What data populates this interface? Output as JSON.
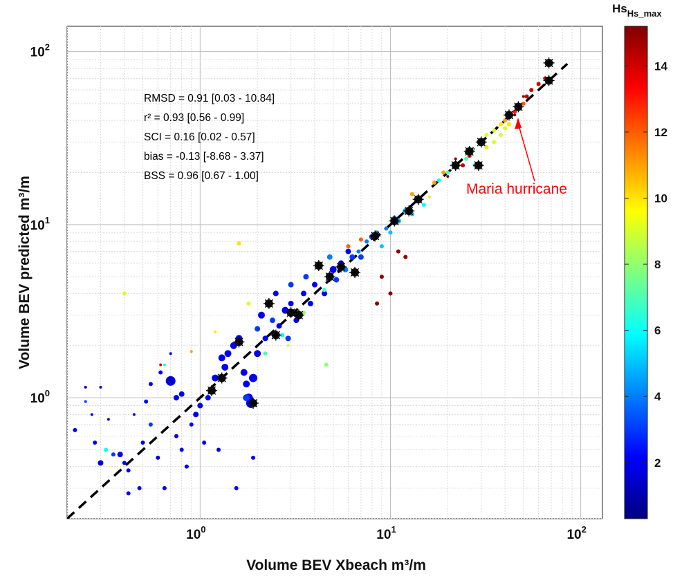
{
  "chart_data": {
    "type": "scatter",
    "xscale": "log",
    "yscale": "log",
    "xlim": [
      0.2,
      130
    ],
    "ylim": [
      0.2,
      140
    ],
    "xlabel": "Volume BEV Xbeach m³/m",
    "ylabel": "Volume BEV predicted m³/m",
    "x_tick_labels": [
      {
        "base": "10",
        "exp": "0",
        "value": 1
      },
      {
        "base": "10",
        "exp": "1",
        "value": 10
      },
      {
        "base": "10",
        "exp": "2",
        "value": 100
      }
    ],
    "y_tick_labels": [
      {
        "base": "10",
        "exp": "0",
        "value": 1
      },
      {
        "base": "10",
        "exp": "1",
        "value": 10
      },
      {
        "base": "10",
        "exp": "2",
        "value": 100
      }
    ],
    "grid": true,
    "colorbar": {
      "label": "Hs_max",
      "colormap": "jet",
      "range": [
        0.3,
        15.2
      ],
      "ticks": [
        "2",
        "4",
        "6",
        "8",
        "10",
        "12",
        "14"
      ],
      "tick_values": [
        2,
        4,
        6,
        8,
        10,
        12,
        14
      ]
    },
    "statistics": [
      "RMSD = 0.91 [0.03 - 10.84]",
      "r² = 0.93 [0.56 - 0.99]",
      "SCI = 0.16 [0.02 - 0.57]",
      "bias = -0.13 [-8.68 - 3.37]",
      "BSS = 0.96 [0.67 - 1.00]"
    ],
    "reference_line": {
      "type": "1:1",
      "style": "dashed",
      "color": "#000000"
    },
    "annotation": {
      "text": "Maria hurricane",
      "color": "#ff0000",
      "points_to": [
        42,
        38
      ]
    },
    "series_points": [
      [
        0.22,
        0.65,
        2,
        3
      ],
      [
        0.25,
        0.95,
        3,
        2
      ],
      [
        0.25,
        1.15,
        1.5,
        2
      ],
      [
        0.27,
        0.8,
        2,
        2
      ],
      [
        0.28,
        0.55,
        2,
        3
      ],
      [
        0.3,
        0.42,
        1.5,
        4
      ],
      [
        0.3,
        1.15,
        2,
        2
      ],
      [
        0.32,
        0.5,
        6,
        3
      ],
      [
        0.33,
        0.75,
        2,
        2
      ],
      [
        0.35,
        0.47,
        3,
        3
      ],
      [
        0.38,
        0.47,
        2,
        4
      ],
      [
        0.4,
        0.42,
        2,
        3
      ],
      [
        0.4,
        4.0,
        9,
        3
      ],
      [
        0.42,
        0.28,
        2,
        3
      ],
      [
        0.42,
        0.38,
        2,
        3
      ],
      [
        0.45,
        0.8,
        2,
        2
      ],
      [
        0.48,
        0.3,
        2,
        3
      ],
      [
        0.5,
        0.55,
        2,
        3
      ],
      [
        0.52,
        0.95,
        2,
        3
      ],
      [
        0.55,
        1.2,
        2,
        3
      ],
      [
        0.55,
        0.7,
        3,
        3
      ],
      [
        0.6,
        0.45,
        1.5,
        3
      ],
      [
        0.62,
        1.4,
        2,
        3
      ],
      [
        0.65,
        0.3,
        2,
        3
      ],
      [
        0.65,
        1.55,
        6,
        2
      ],
      [
        0.7,
        1.8,
        2,
        2
      ],
      [
        0.7,
        1.25,
        1.5,
        7
      ],
      [
        0.75,
        0.6,
        2,
        3
      ],
      [
        0.75,
        1.0,
        2,
        4
      ],
      [
        0.8,
        0.5,
        2,
        3
      ],
      [
        0.8,
        1.05,
        2,
        4
      ],
      [
        0.85,
        0.4,
        2,
        3
      ],
      [
        0.9,
        0.7,
        2,
        3
      ],
      [
        0.95,
        0.8,
        2,
        4
      ],
      [
        1.0,
        0.9,
        2,
        4
      ],
      [
        1.05,
        0.55,
        2,
        3
      ],
      [
        1.1,
        1.0,
        2,
        4
      ],
      [
        1.15,
        1.1,
        2,
        5
      ],
      [
        1.2,
        1.3,
        2,
        5
      ],
      [
        1.25,
        0.5,
        2,
        3
      ],
      [
        1.3,
        1.7,
        2,
        5
      ],
      [
        1.35,
        1.5,
        2,
        5
      ],
      [
        1.4,
        1.8,
        2,
        5
      ],
      [
        1.5,
        2.0,
        2,
        5
      ],
      [
        1.55,
        0.3,
        2,
        3
      ],
      [
        1.6,
        2.2,
        2,
        5
      ],
      [
        1.7,
        1.4,
        2,
        5
      ],
      [
        1.75,
        1.2,
        2,
        5
      ],
      [
        1.8,
        1.0,
        2,
        6
      ],
      [
        1.85,
        0.93,
        2,
        7
      ],
      [
        1.9,
        1.3,
        2,
        6
      ],
      [
        1.9,
        0.45,
        2,
        3
      ],
      [
        2.0,
        1.8,
        2,
        5
      ],
      [
        2.0,
        2.5,
        3,
        4
      ],
      [
        2.1,
        3.0,
        2,
        5
      ],
      [
        2.2,
        2.2,
        2,
        4
      ],
      [
        2.3,
        3.5,
        2,
        5
      ],
      [
        2.4,
        2.8,
        3,
        4
      ],
      [
        2.5,
        4.0,
        2,
        4
      ],
      [
        2.6,
        2.6,
        2,
        4
      ],
      [
        2.7,
        2.3,
        6,
        3
      ],
      [
        2.8,
        3.2,
        2,
        5
      ],
      [
        2.9,
        2.2,
        3,
        4
      ],
      [
        3.0,
        3.5,
        2,
        4
      ],
      [
        3.0,
        4.5,
        3,
        4
      ],
      [
        3.2,
        2.8,
        2,
        4
      ],
      [
        3.3,
        3.0,
        2,
        4
      ],
      [
        3.5,
        4.0,
        2,
        4
      ],
      [
        3.6,
        5.0,
        3,
        4
      ],
      [
        3.8,
        3.5,
        2,
        4
      ],
      [
        4.0,
        4.5,
        2,
        4
      ],
      [
        4.2,
        5.8,
        2,
        5
      ],
      [
        4.5,
        4.0,
        2,
        4
      ],
      [
        4.6,
        1.55,
        8,
        3
      ],
      [
        4.8,
        6.5,
        4,
        4
      ],
      [
        5.0,
        5.5,
        2,
        5
      ],
      [
        5.2,
        4.8,
        3,
        4
      ],
      [
        5.5,
        6.0,
        2,
        4
      ],
      [
        5.8,
        5.5,
        4,
        4
      ],
      [
        6.0,
        7.0,
        2,
        4
      ],
      [
        6.3,
        6.5,
        3,
        4
      ],
      [
        6.5,
        5.3,
        2,
        5
      ],
      [
        6.8,
        7.0,
        4,
        3
      ],
      [
        7.0,
        6.5,
        3,
        4
      ],
      [
        7.5,
        8.0,
        4,
        3
      ],
      [
        8.0,
        8.5,
        3,
        4
      ],
      [
        8.5,
        9.0,
        4,
        3
      ],
      [
        9.0,
        7.5,
        5,
        3
      ],
      [
        9.5,
        9.5,
        4,
        3
      ],
      [
        10.0,
        9.0,
        5,
        3
      ],
      [
        10.5,
        11.0,
        4,
        3
      ],
      [
        11.0,
        10.5,
        5,
        4
      ],
      [
        12.0,
        12.0,
        5,
        4
      ],
      [
        13.0,
        11.5,
        5,
        3
      ],
      [
        14.0,
        14.0,
        5,
        4
      ],
      [
        15.0,
        13.0,
        6,
        3
      ],
      [
        16.0,
        14.5,
        10,
        2
      ],
      [
        18.0,
        18.0,
        6,
        3
      ],
      [
        20.0,
        20.0,
        7,
        3
      ],
      [
        22.0,
        22.5,
        7,
        4
      ],
      [
        24.0,
        22.0,
        14,
        3
      ],
      [
        25.0,
        24.0,
        7,
        3
      ],
      [
        26.0,
        25.0,
        14,
        3
      ],
      [
        27.0,
        27.0,
        7,
        3
      ],
      [
        28.0,
        22.0,
        7,
        4
      ],
      [
        30.0,
        30.0,
        8,
        3
      ],
      [
        32.0,
        33.0,
        9,
        3
      ],
      [
        35.0,
        35.0,
        9,
        3
      ],
      [
        38.0,
        38.0,
        10,
        3
      ],
      [
        40.0,
        40.0,
        11,
        3
      ],
      [
        42.0,
        43.0,
        12,
        3
      ],
      [
        45.0,
        45.0,
        13,
        3
      ],
      [
        48.0,
        48.0,
        14,
        3
      ],
      [
        50.0,
        50.0,
        12,
        3
      ],
      [
        52.0,
        55.0,
        14,
        3
      ],
      [
        55.0,
        60.0,
        14,
        3
      ],
      [
        60.0,
        65.0,
        14,
        3
      ],
      [
        65.0,
        70.0,
        14,
        3
      ],
      [
        68.0,
        85.0,
        15,
        4
      ],
      [
        68.0,
        68.0,
        12,
        3
      ],
      [
        32.0,
        28.0,
        10,
        3
      ],
      [
        35.0,
        30.0,
        9,
        3
      ],
      [
        38.0,
        33.0,
        9,
        3
      ],
      [
        40.0,
        36.0,
        9,
        3
      ],
      [
        42.0,
        38.0,
        10,
        3
      ],
      [
        10.0,
        4.0,
        15,
        3
      ],
      [
        9.0,
        5.0,
        15,
        3
      ],
      [
        11.0,
        7.0,
        15,
        3
      ],
      [
        8.5,
        3.5,
        15,
        3
      ],
      [
        12.0,
        6.5,
        15,
        3
      ],
      [
        20.0,
        19.0,
        15,
        2
      ],
      [
        22.0,
        24.0,
        15,
        2
      ],
      [
        25.0,
        26.0,
        15,
        2
      ],
      [
        45.0,
        43.0,
        15,
        2
      ],
      [
        50.0,
        55.0,
        15,
        2
      ],
      [
        6.0,
        7.5,
        12,
        3
      ],
      [
        7.0,
        8.2,
        12,
        3
      ],
      [
        13.0,
        15.0,
        11,
        3
      ],
      [
        17.0,
        17.5,
        11,
        3
      ],
      [
        19.0,
        20.0,
        11,
        3
      ],
      [
        1.8,
        3.5,
        9,
        3
      ],
      [
        1.2,
        2.4,
        10,
        2
      ],
      [
        3.5,
        3.1,
        8,
        3
      ],
      [
        4.5,
        4.2,
        7,
        3
      ],
      [
        2.2,
        1.8,
        7,
        3
      ],
      [
        0.62,
        1.55,
        14,
        2
      ],
      [
        0.9,
        1.85,
        11,
        2
      ],
      [
        1.6,
        7.8,
        10,
        3
      ],
      [
        2.9,
        2.0,
        9,
        2
      ],
      [
        1.75,
        1.0,
        3,
        5
      ]
    ],
    "asterisk_markers": [
      [
        1.15,
        1.1
      ],
      [
        1.3,
        1.3
      ],
      [
        1.6,
        2.1
      ],
      [
        1.9,
        0.93
      ],
      [
        2.3,
        3.5
      ],
      [
        2.5,
        2.3
      ],
      [
        3.0,
        3.1
      ],
      [
        3.3,
        3.0
      ],
      [
        4.2,
        5.8
      ],
      [
        4.8,
        5.0
      ],
      [
        5.5,
        5.7
      ],
      [
        6.5,
        5.3
      ],
      [
        8.3,
        8.6
      ],
      [
        10.5,
        10.5
      ],
      [
        12.5,
        12.0
      ],
      [
        14.0,
        14.0
      ],
      [
        22.0,
        22.0
      ],
      [
        26.0,
        26.5
      ],
      [
        29.0,
        22.0
      ],
      [
        30.0,
        30.0
      ],
      [
        42.0,
        43.0
      ],
      [
        47.0,
        48.0
      ],
      [
        68.0,
        68.0
      ],
      [
        68.0,
        86.0
      ]
    ]
  }
}
